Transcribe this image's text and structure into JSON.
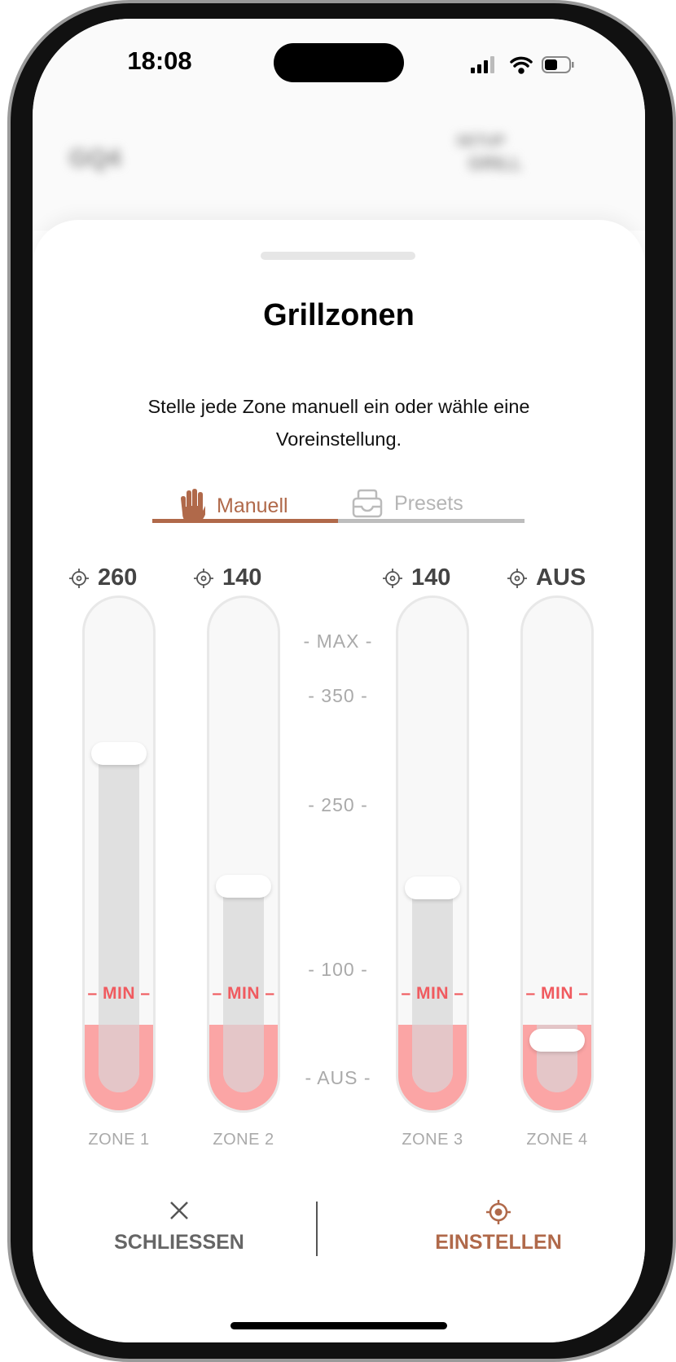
{
  "status_bar": {
    "time": "18:08",
    "signal_icon": "cellular-signal-icon",
    "wifi_icon": "wifi-icon",
    "battery_icon": "battery-icon"
  },
  "background_header": {
    "title": "GQ4",
    "right_top": "SETUP",
    "right_bottom": "GRILL"
  },
  "sheet": {
    "title": "Grillzonen",
    "subtitle": "Stelle jede Zone manuell ein oder wähle eine Voreinstellung.",
    "tabs": [
      {
        "label": "Manuell",
        "icon": "hand-icon",
        "active": true
      },
      {
        "label": "Presets",
        "icon": "tray-icon",
        "active": false
      }
    ],
    "scale": [
      "- MAX -",
      "- 350 -",
      "- 250 -",
      "- 100 -",
      "- AUS -"
    ],
    "min_label": "MIN",
    "zones": [
      {
        "label": "ZONE 1",
        "value": "260"
      },
      {
        "label": "ZONE 2",
        "value": "140"
      },
      {
        "label": "ZONE 3",
        "value": "140"
      },
      {
        "label": "ZONE 4",
        "value": "AUS"
      }
    ],
    "close_label": "SCHLIESSEN",
    "apply_label": "EINSTELLEN"
  },
  "colors": {
    "accent": "#b0694a",
    "min": "#f05a5f",
    "off_zone": "#fba5a5"
  }
}
